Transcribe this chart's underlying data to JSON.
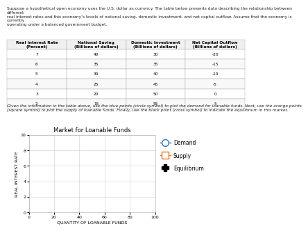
{
  "title": "Market for Loanable Funds",
  "xlabel": "QUANTITY OF LOANABLE FUNDS",
  "ylabel": "REAL INTEREST RATE",
  "xlim": [
    0,
    100
  ],
  "ylim": [
    0,
    10
  ],
  "xticks": [
    0,
    20,
    40,
    60,
    80,
    100
  ],
  "yticks": [
    0,
    2,
    4,
    6,
    8,
    10
  ],
  "demand_color": "#3a6fc4",
  "supply_color": "#e87722",
  "equilibrium_color": "#000000",
  "legend_labels": [
    "Demand",
    "Supply",
    "Equilibrium"
  ],
  "background_color": "#ffffff",
  "grid_color": "#cccccc",
  "title_fontsize": 6,
  "axis_label_fontsize": 4.5,
  "tick_fontsize": 4.5,
  "legend_fontsize": 5.5,
  "header_text": "Suppose a hypothetical open economy uses the U.S. dollar as currency. The table below presents data describing the relationship between different\nreal interest rates and this economy’s levels of national saving, domestic investment, and net capital outflow. Assume that the economy is currently\noperating under a balanced government budget.",
  "instruction_text": "Given the information in the table above, use the blue points (circle symbol) to plot the demand for loanable funds. Next, use the orange points\n(square symbol) to plot the supply of loanable funds. Finally, use the black point (cross symbol) to indicate the equilibrium in this market.",
  "table_headers": [
    "Real Interest Rate\n(Percent)",
    "National Saving\n(Billions of dollars)",
    "Domestic Investment\n(Billions of dollars)",
    "Net Capital Outflow\n(Billions of dollars)"
  ],
  "table_data": [
    [
      7,
      40,
      30,
      -20
    ],
    [
      6,
      35,
      35,
      -15
    ],
    [
      5,
      30,
      40,
      -10
    ],
    [
      4,
      25,
      45,
      -5
    ],
    [
      3,
      20,
      50,
      0
    ],
    [
      2,
      15,
      55,
      5
    ]
  ],
  "header_fontsize": 4.2,
  "table_fontsize": 4.2
}
